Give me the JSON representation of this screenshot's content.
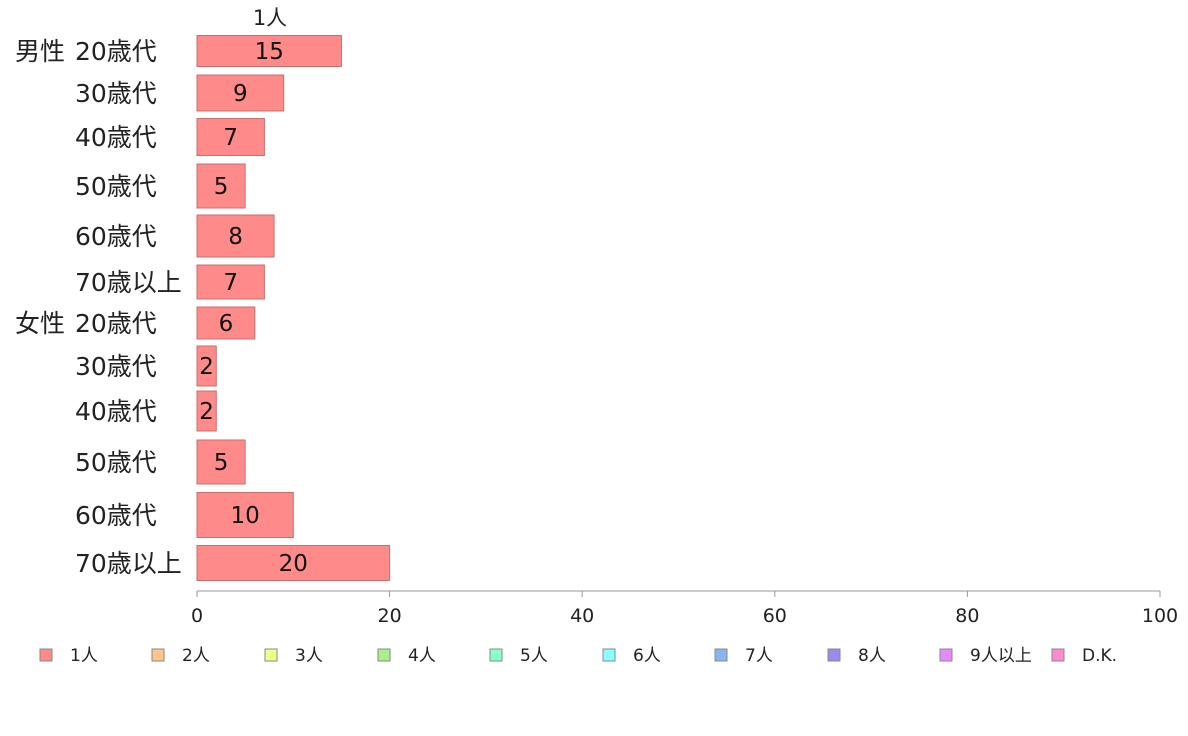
{
  "chart_data": {
    "type": "bar",
    "orientation": "horizontal",
    "series_header": "1人",
    "groups": [
      {
        "label": "男性",
        "start_index": 0
      },
      {
        "label": "女性",
        "start_index": 6
      }
    ],
    "categories": [
      "20歳代",
      "30歳代",
      "40歳代",
      "50歳代",
      "60歳代",
      "70歳以上",
      "20歳代",
      "30歳代",
      "40歳代",
      "50歳代",
      "60歳代",
      "70歳以上"
    ],
    "series": [
      {
        "name": "1人",
        "values": [
          15,
          9,
          7,
          5,
          8,
          7,
          6,
          2,
          2,
          5,
          10,
          20
        ]
      }
    ],
    "xlim": [
      0,
      100
    ],
    "x_ticks": [
      0,
      20,
      40,
      60,
      80,
      100
    ],
    "grid": false,
    "legend": {
      "position": "bottom",
      "entries": [
        {
          "label": "1人",
          "color": "#ff8a8a"
        },
        {
          "label": "2人",
          "color": "#ffc48a"
        },
        {
          "label": "3人",
          "color": "#f0ff8a"
        },
        {
          "label": "4人",
          "color": "#a8f08a"
        },
        {
          "label": "5人",
          "color": "#8affc4"
        },
        {
          "label": "6人",
          "color": "#8affff"
        },
        {
          "label": "7人",
          "color": "#8ab4f0"
        },
        {
          "label": "8人",
          "color": "#9a8af0"
        },
        {
          "label": "9人以上",
          "color": "#e88aff"
        },
        {
          "label": "D.K.",
          "color": "#ff8ad0"
        }
      ]
    },
    "colors": {
      "bar_fill": "#ff8a8a",
      "bar_stroke": "#c86e6e",
      "axis": "#999999"
    }
  }
}
